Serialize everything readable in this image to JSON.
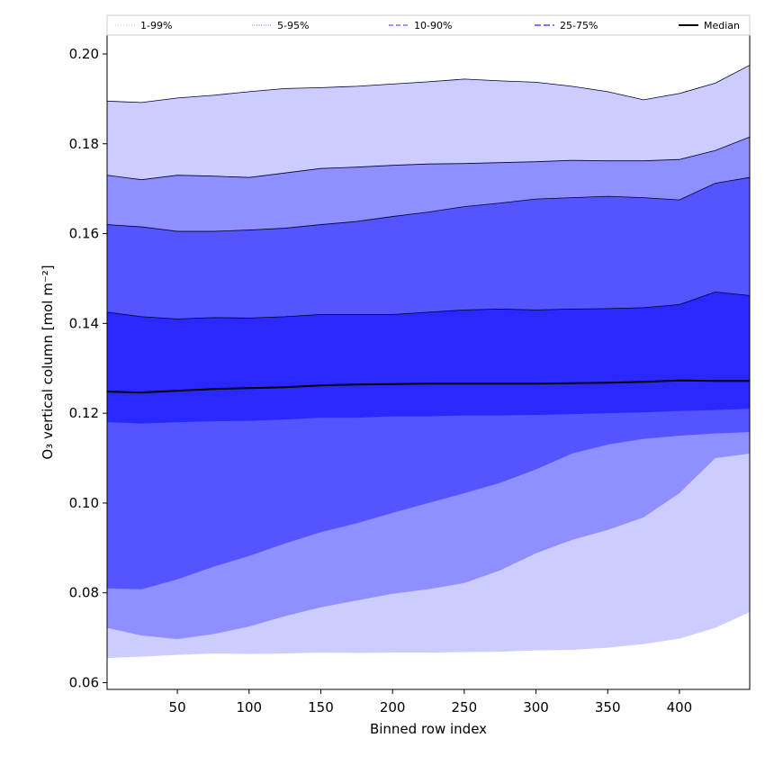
{
  "chart_data": {
    "type": "area",
    "title": "",
    "xlabel": "Binned row index",
    "ylabel": "O₃ vertical column [mol m⁻²]",
    "xlim": [
      1,
      449
    ],
    "ylim": [
      0.0585,
      0.2042
    ],
    "xticks": [
      50,
      100,
      150,
      200,
      250,
      300,
      350,
      400
    ],
    "xtick_labels": [
      "50",
      "100",
      "150",
      "200",
      "250",
      "300",
      "350",
      "400"
    ],
    "yticks": [
      0.06,
      0.08,
      0.1,
      0.12,
      0.14,
      0.16,
      0.18,
      0.2
    ],
    "ytick_labels": [
      "0.06",
      "0.08",
      "0.10",
      "0.12",
      "0.14",
      "0.16",
      "0.18",
      "0.20"
    ],
    "legend_position": "top, horizontal",
    "x": [
      1,
      25,
      50,
      75,
      100,
      125,
      150,
      175,
      200,
      225,
      250,
      275,
      300,
      325,
      350,
      375,
      400,
      425,
      449
    ],
    "bands": [
      {
        "name": "1-99%",
        "color": "#ccccff",
        "lower": [
          0.0655,
          0.0658,
          0.0662,
          0.0665,
          0.0664,
          0.0665,
          0.0667,
          0.0666,
          0.0667,
          0.0667,
          0.0668,
          0.0669,
          0.0672,
          0.0673,
          0.0678,
          0.0686,
          0.0698,
          0.0722,
          0.0757
        ],
        "upper": [
          0.1895,
          0.1892,
          0.1902,
          0.1908,
          0.1916,
          0.1923,
          0.1925,
          0.1928,
          0.1933,
          0.1938,
          0.1944,
          0.194,
          0.1937,
          0.1928,
          0.1916,
          0.1898,
          0.1912,
          0.1935,
          0.1975
        ]
      },
      {
        "name": "5-95%",
        "color": "#8f8fff",
        "lower": [
          0.0722,
          0.0705,
          0.0697,
          0.0708,
          0.0725,
          0.0748,
          0.0768,
          0.0783,
          0.0798,
          0.0808,
          0.0822,
          0.085,
          0.0888,
          0.0918,
          0.094,
          0.0968,
          0.1022,
          0.11,
          0.111
        ],
        "upper": [
          0.173,
          0.172,
          0.173,
          0.1728,
          0.1725,
          0.1735,
          0.1745,
          0.1748,
          0.1752,
          0.1755,
          0.1756,
          0.1758,
          0.176,
          0.1763,
          0.1762,
          0.1762,
          0.1765,
          0.1785,
          0.1815
        ]
      },
      {
        "name": "10-90%",
        "color": "#5555ff",
        "lower": [
          0.081,
          0.0808,
          0.083,
          0.0858,
          0.0882,
          0.091,
          0.0935,
          0.0955,
          0.0978,
          0.1,
          0.1022,
          0.1045,
          0.1075,
          0.111,
          0.113,
          0.1143,
          0.115,
          0.1155,
          0.1158
        ],
        "upper": [
          0.162,
          0.1615,
          0.1605,
          0.1605,
          0.1608,
          0.1612,
          0.162,
          0.1627,
          0.1638,
          0.1648,
          0.166,
          0.1668,
          0.1677,
          0.168,
          0.1683,
          0.168,
          0.1675,
          0.1712,
          0.1725
        ]
      },
      {
        "name": "25-75%",
        "color": "#2828ff",
        "lower": [
          0.118,
          0.1177,
          0.118,
          0.1182,
          0.1183,
          0.1186,
          0.119,
          0.119,
          0.1193,
          0.1193,
          0.1195,
          0.1195,
          0.1196,
          0.1198,
          0.12,
          0.1202,
          0.1205,
          0.1207,
          0.121
        ],
        "upper": [
          0.1425,
          0.1415,
          0.141,
          0.1413,
          0.1412,
          0.1415,
          0.142,
          0.142,
          0.142,
          0.1425,
          0.143,
          0.1432,
          0.143,
          0.1432,
          0.1433,
          0.1435,
          0.1442,
          0.147,
          0.1462
        ]
      }
    ],
    "median": {
      "name": "Median",
      "color": "#000000",
      "values": [
        0.1248,
        0.1246,
        0.125,
        0.1254,
        0.1256,
        0.1258,
        0.1262,
        0.1264,
        0.1265,
        0.1266,
        0.1266,
        0.1266,
        0.1266,
        0.1267,
        0.1268,
        0.127,
        0.1273,
        0.1272,
        0.1272
      ]
    },
    "legend": [
      {
        "label": "1-99%",
        "color": "#ccccff",
        "dash": "1,2"
      },
      {
        "label": "5-95%",
        "color": "#8f8fff",
        "dash": "1,1.5"
      },
      {
        "label": "10-90%",
        "color": "#5555ff",
        "dash": "5,3"
      },
      {
        "label": "25-75%",
        "color": "#2828ff",
        "dash": "7,3"
      },
      {
        "label": "Median",
        "color": "#000000",
        "dash": ""
      }
    ]
  }
}
